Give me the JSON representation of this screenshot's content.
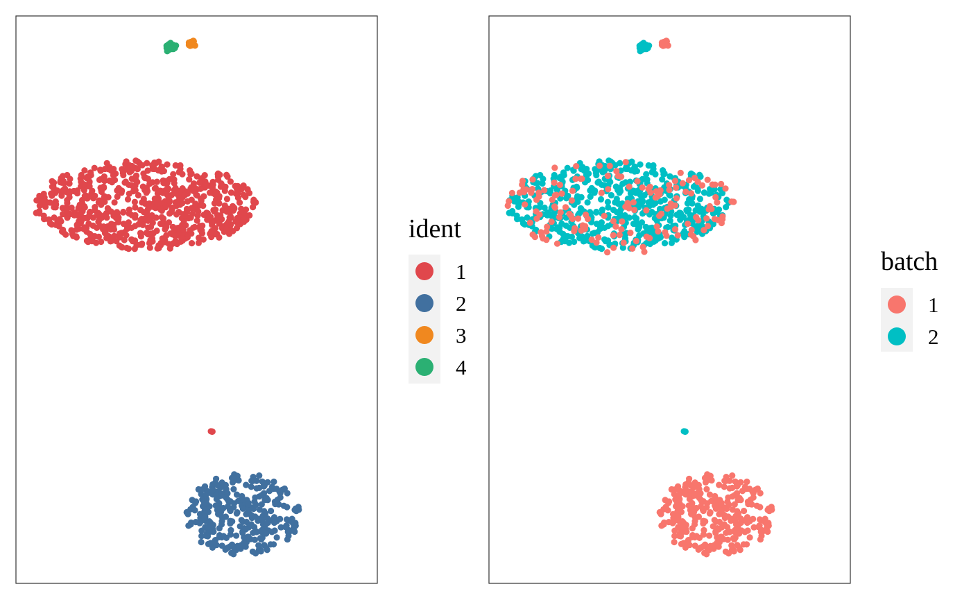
{
  "chart_data": [
    {
      "type": "scatter",
      "color_by": "ident",
      "axes_visible": false,
      "grid": false,
      "legend_position": "right",
      "legend": {
        "title": "ident",
        "entries": [
          {
            "label": "1",
            "color": "#E0474C"
          },
          {
            "label": "2",
            "color": "#41709F"
          },
          {
            "label": "3",
            "color": "#F0881F"
          },
          {
            "label": "4",
            "color": "#2BB073"
          }
        ]
      },
      "clusters": [
        {
          "group": "1",
          "center": [
            5.0,
            3.5
          ],
          "spread": [
            4.3,
            1.3
          ],
          "shape": "ellipse",
          "count": 720
        },
        {
          "group": "1",
          "center": [
            7.6,
            -3.1
          ],
          "spread": [
            0.05,
            0.05
          ],
          "shape": "blob",
          "count": 4
        },
        {
          "group": "2",
          "center": [
            8.8,
            -5.5
          ],
          "spread": [
            2.2,
            1.2
          ],
          "shape": "ellipse",
          "count": 300
        },
        {
          "group": "3",
          "center": [
            6.8,
            8.2
          ],
          "spread": [
            0.12,
            0.1
          ],
          "shape": "blob",
          "count": 30
        },
        {
          "group": "4",
          "center": [
            6.0,
            8.1
          ],
          "spread": [
            0.18,
            0.1
          ],
          "shape": "blob",
          "count": 40
        }
      ],
      "xlim": [
        0,
        14
      ],
      "ylim": [
        -7.5,
        9
      ]
    },
    {
      "type": "scatter",
      "color_by": "batch",
      "axes_visible": false,
      "grid": false,
      "legend_position": "right",
      "legend": {
        "title": "batch",
        "entries": [
          {
            "label": "1",
            "color": "#F8766D"
          },
          {
            "label": "2",
            "color": "#00BFC4"
          }
        ]
      },
      "clusters": [
        {
          "group": "2",
          "center": [
            5.0,
            3.5
          ],
          "spread": [
            4.3,
            1.3
          ],
          "shape": "ellipse",
          "count": 560
        },
        {
          "group": "1",
          "center": [
            5.0,
            3.5
          ],
          "spread": [
            4.5,
            1.4
          ],
          "shape": "ellipse",
          "count": 160
        },
        {
          "group": "2",
          "center": [
            7.6,
            -3.1
          ],
          "spread": [
            0.05,
            0.05
          ],
          "shape": "blob",
          "count": 4
        },
        {
          "group": "1",
          "center": [
            8.8,
            -5.5
          ],
          "spread": [
            2.2,
            1.2
          ],
          "shape": "ellipse",
          "count": 300
        },
        {
          "group": "1",
          "center": [
            6.8,
            8.2
          ],
          "spread": [
            0.12,
            0.1
          ],
          "shape": "blob",
          "count": 30
        },
        {
          "group": "2",
          "center": [
            6.0,
            8.1
          ],
          "spread": [
            0.18,
            0.1
          ],
          "shape": "blob",
          "count": 40
        }
      ],
      "xlim": [
        0,
        14
      ],
      "ylim": [
        -7.5,
        9
      ]
    }
  ]
}
